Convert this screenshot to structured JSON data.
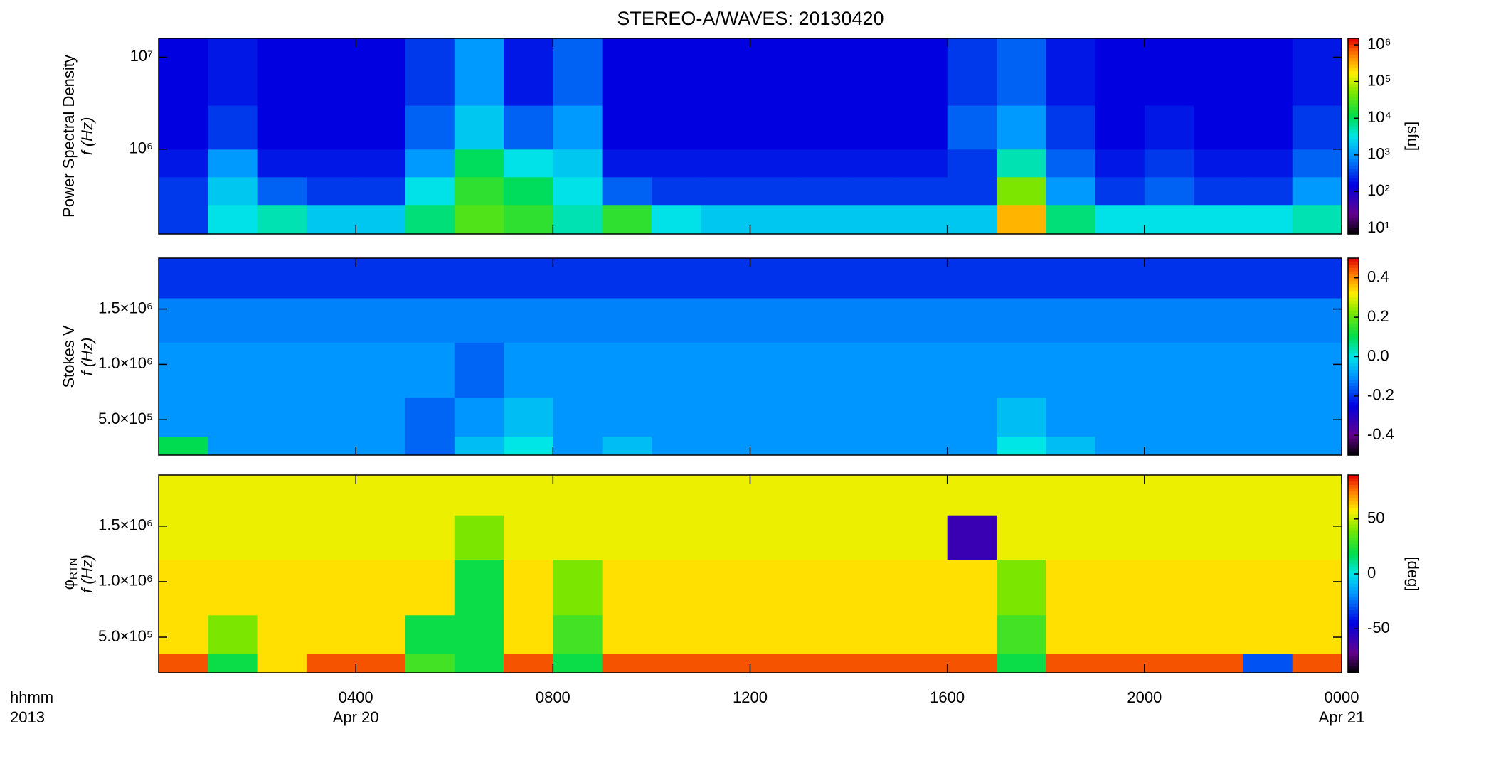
{
  "chart_data": [
    {
      "type": "heatmap",
      "title": "STEREO-A/WAVES: 20130420",
      "ylabel": "Power Spectral Density",
      "ylabel_symbol": "f (Hz)",
      "ylog": true,
      "ylim": [
        120000,
        16000000
      ],
      "yticks": [
        {
          "value": 1000000,
          "label": "10⁶"
        },
        {
          "value": 10000000,
          "label": "10⁷"
        }
      ],
      "zlog": true,
      "zlim": [
        7,
        1500000
      ],
      "zticks": [
        {
          "value": 10,
          "label": "10¹"
        },
        {
          "value": 100,
          "label": "10²"
        },
        {
          "value": 1000,
          "label": "10³"
        },
        {
          "value": 10000,
          "label": "10⁴"
        },
        {
          "value": 100000,
          "label": "10⁵"
        },
        {
          "value": 1000000,
          "label": "10⁶"
        }
      ],
      "zlabel": "[sfu]",
      "colormap": "rainbow",
      "xlim": [
        0,
        24
      ],
      "x_edges": [
        0,
        1,
        2,
        3,
        4,
        5,
        6,
        7,
        8,
        9,
        10,
        11,
        12,
        13,
        14,
        15,
        16,
        17,
        18,
        19,
        20,
        21,
        22,
        23,
        24
      ],
      "y_edges": [
        120000,
        250000,
        500000,
        1000000,
        3000000,
        16000000
      ],
      "z": [
        [
          300,
          3000,
          5000,
          2000,
          2000,
          8000,
          30000,
          20000,
          5000,
          20000,
          3000,
          2000,
          2000,
          2000,
          2000,
          2000,
          2000,
          300000,
          8000,
          3000,
          3000,
          3000,
          3000,
          5000
        ],
        [
          300,
          2000,
          500,
          300,
          300,
          3000,
          20000,
          10000,
          3000,
          500,
          300,
          300,
          300,
          300,
          300,
          300,
          300,
          50000,
          1000,
          300,
          500,
          300,
          300,
          1000
        ],
        [
          200,
          1000,
          200,
          200,
          200,
          1000,
          10000,
          3000,
          2000,
          200,
          200,
          200,
          200,
          200,
          200,
          200,
          300,
          5000,
          500,
          200,
          300,
          200,
          200,
          500
        ],
        [
          150,
          300,
          150,
          150,
          150,
          500,
          2000,
          500,
          1000,
          150,
          150,
          150,
          150,
          150,
          150,
          150,
          500,
          1000,
          300,
          150,
          200,
          150,
          150,
          300
        ],
        [
          150,
          200,
          150,
          150,
          150,
          300,
          1000,
          200,
          500,
          150,
          150,
          150,
          150,
          150,
          150,
          150,
          300,
          500,
          200,
          150,
          150,
          150,
          150,
          200
        ]
      ]
    },
    {
      "type": "heatmap",
      "ylabel": "Stokes V",
      "ylabel_symbol": "f (Hz)",
      "ylog": false,
      "ylim": [
        180000,
        1960000
      ],
      "yticks": [
        {
          "value": 500000,
          "label": "5.0×10⁵"
        },
        {
          "value": 1000000,
          "label": "1.0×10⁶"
        },
        {
          "value": 1500000,
          "label": "1.5×10⁶"
        }
      ],
      "zlog": false,
      "zlim": [
        -0.5,
        0.5
      ],
      "zticks": [
        {
          "value": -0.4,
          "label": "-0.4"
        },
        {
          "value": -0.2,
          "label": "-0.2"
        },
        {
          "value": 0,
          "label": "0.0"
        },
        {
          "value": 0.2,
          "label": "0.2"
        },
        {
          "value": 0.4,
          "label": "0.4"
        }
      ],
      "colormap": "rainbow",
      "xlim": [
        0,
        24
      ],
      "x_edges": [
        0,
        1,
        2,
        3,
        4,
        5,
        6,
        7,
        8,
        9,
        10,
        11,
        12,
        13,
        14,
        15,
        16,
        17,
        18,
        19,
        20,
        21,
        22,
        23,
        24
      ],
      "y_edges": [
        180000,
        350000,
        700000,
        1200000,
        1600000,
        1960000
      ],
      "z": [
        [
          0.1,
          -0.1,
          -0.1,
          -0.1,
          -0.1,
          -0.15,
          -0.05,
          0,
          -0.1,
          -0.05,
          -0.1,
          -0.1,
          -0.1,
          -0.1,
          -0.1,
          -0.1,
          -0.1,
          0,
          -0.05,
          -0.1,
          -0.1,
          -0.1,
          -0.1,
          -0.1
        ],
        [
          -0.1,
          -0.1,
          -0.1,
          -0.1,
          -0.1,
          -0.15,
          -0.1,
          -0.05,
          -0.1,
          -0.1,
          -0.1,
          -0.1,
          -0.1,
          -0.1,
          -0.1,
          -0.1,
          -0.1,
          -0.05,
          -0.1,
          -0.1,
          -0.1,
          -0.1,
          -0.1,
          -0.1
        ],
        [
          -0.1,
          -0.1,
          -0.1,
          -0.1,
          -0.1,
          -0.1,
          -0.15,
          -0.1,
          -0.1,
          -0.1,
          -0.1,
          -0.1,
          -0.1,
          -0.1,
          -0.1,
          -0.1,
          -0.1,
          -0.1,
          -0.1,
          -0.1,
          -0.1,
          -0.1,
          -0.1,
          -0.1
        ],
        [
          -0.12,
          -0.12,
          -0.12,
          -0.12,
          -0.12,
          -0.12,
          -0.12,
          -0.12,
          -0.12,
          -0.12,
          -0.12,
          -0.12,
          -0.12,
          -0.12,
          -0.12,
          -0.12,
          -0.12,
          -0.12,
          -0.12,
          -0.12,
          -0.12,
          -0.12,
          -0.12,
          -0.12
        ],
        [
          -0.2,
          -0.2,
          -0.2,
          -0.2,
          -0.2,
          -0.2,
          -0.2,
          -0.2,
          -0.2,
          -0.2,
          -0.2,
          -0.2,
          -0.2,
          -0.2,
          -0.2,
          -0.2,
          -0.2,
          -0.2,
          -0.2,
          -0.2,
          -0.2,
          -0.2,
          -0.2,
          -0.2
        ]
      ]
    },
    {
      "type": "heatmap",
      "ylabel": "φ",
      "ylabel_sub": "RTN",
      "ylabel_symbol": "f (Hz)",
      "ylog": false,
      "ylim": [
        180000,
        1960000
      ],
      "yticks": [
        {
          "value": 500000,
          "label": "5.0×10⁵"
        },
        {
          "value": 1000000,
          "label": "1.0×10⁶"
        },
        {
          "value": 1500000,
          "label": "1.5×10⁶"
        }
      ],
      "zlog": false,
      "zlim": [
        -90,
        90
      ],
      "zticks": [
        -50,
        0,
        50
      ],
      "zlabel": "[deg]",
      "colormap": "rainbow",
      "xlim": [
        0,
        24
      ],
      "xticks": [
        {
          "value": 4,
          "label": "0400"
        },
        {
          "value": 8,
          "label": "0800"
        },
        {
          "value": 12,
          "label": "1200"
        },
        {
          "value": 16,
          "label": "1600"
        },
        {
          "value": 20,
          "label": "2000"
        },
        {
          "value": 24,
          "label": "0000"
        }
      ],
      "date_labels": [
        {
          "value": 4,
          "label": "Apr 20"
        },
        {
          "value": 24,
          "label": "Apr 21"
        }
      ],
      "xlabel": "hhmm",
      "year_label": "2013",
      "x_edges": [
        0,
        1,
        2,
        3,
        4,
        5,
        6,
        7,
        8,
        9,
        10,
        11,
        12,
        13,
        14,
        15,
        16,
        17,
        18,
        19,
        20,
        21,
        22,
        23,
        24
      ],
      "y_edges": [
        180000,
        350000,
        700000,
        1200000,
        1600000,
        1960000
      ],
      "z": [
        [
          80,
          20,
          60,
          80,
          80,
          30,
          20,
          80,
          20,
          80,
          80,
          80,
          80,
          80,
          80,
          80,
          80,
          20,
          80,
          80,
          80,
          80,
          -30,
          80
        ],
        [
          60,
          40,
          60,
          60,
          60,
          20,
          20,
          60,
          30,
          60,
          60,
          60,
          60,
          60,
          60,
          60,
          60,
          30,
          60,
          60,
          60,
          60,
          60,
          60
        ],
        [
          60,
          60,
          60,
          60,
          60,
          60,
          20,
          60,
          40,
          60,
          60,
          60,
          60,
          60,
          60,
          60,
          60,
          40,
          60,
          60,
          60,
          60,
          60,
          60
        ],
        [
          55,
          55,
          55,
          55,
          55,
          55,
          40,
          55,
          55,
          55,
          55,
          55,
          55,
          55,
          55,
          55,
          -60,
          55,
          55,
          55,
          55,
          55,
          55,
          55
        ],
        [
          55,
          55,
          55,
          55,
          55,
          55,
          55,
          55,
          55,
          55,
          55,
          55,
          55,
          55,
          55,
          55,
          55,
          55,
          55,
          55,
          55,
          55,
          55,
          55
        ]
      ]
    }
  ]
}
